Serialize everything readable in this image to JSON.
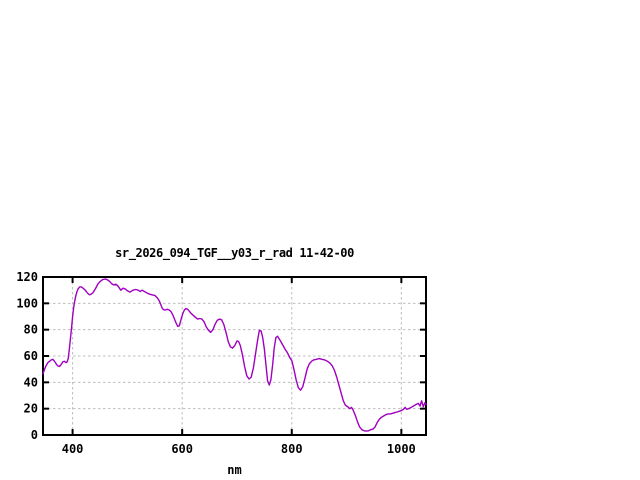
{
  "chart_data": {
    "type": "line",
    "title": "sr_2026_094_TGF__y03_r_rad 11-42-00",
    "xlabel": "nm",
    "ylabel": "",
    "xlim": [
      346,
      1045
    ],
    "ylim": [
      0,
      120
    ],
    "xticks": [
      400,
      600,
      800,
      1000
    ],
    "yticks": [
      0,
      20,
      40,
      60,
      80,
      100,
      120
    ],
    "grid": true,
    "legend": "none",
    "colors": {
      "line": "#a000c0",
      "grid": "#bdbdbd",
      "frame": "#000000",
      "background": "#ffffff",
      "text": "#000000"
    },
    "series": [
      {
        "points": [
          [
            346,
            46.5
          ],
          [
            349,
            50
          ],
          [
            352,
            53
          ],
          [
            355,
            55
          ],
          [
            358,
            56
          ],
          [
            361,
            57
          ],
          [
            364,
            57.5
          ],
          [
            367,
            56
          ],
          [
            370,
            54
          ],
          [
            373,
            52.5
          ],
          [
            376,
            52
          ],
          [
            379,
            53.5
          ],
          [
            382,
            55.5
          ],
          [
            385,
            56
          ],
          [
            388,
            55
          ],
          [
            390,
            55.5
          ],
          [
            392,
            58
          ],
          [
            394,
            65
          ],
          [
            396,
            73
          ],
          [
            398,
            81
          ],
          [
            400,
            90
          ],
          [
            402,
            97
          ],
          [
            404,
            102
          ],
          [
            406,
            106
          ],
          [
            408,
            109
          ],
          [
            410,
            111
          ],
          [
            413,
            112.5
          ],
          [
            416,
            112.5
          ],
          [
            419,
            111.5
          ],
          [
            422,
            110.5
          ],
          [
            425,
            109
          ],
          [
            428,
            107.5
          ],
          [
            431,
            106.5
          ],
          [
            434,
            107
          ],
          [
            437,
            108
          ],
          [
            440,
            110
          ],
          [
            443,
            112
          ],
          [
            446,
            114.5
          ],
          [
            450,
            116.5
          ],
          [
            455,
            118
          ],
          [
            460,
            118.5
          ],
          [
            465,
            117.5
          ],
          [
            468,
            116.5
          ],
          [
            471,
            115
          ],
          [
            475,
            114
          ],
          [
            479,
            114.5
          ],
          [
            483,
            113
          ],
          [
            488,
            110
          ],
          [
            492,
            111.5
          ],
          [
            496,
            111
          ],
          [
            500,
            109.5
          ],
          [
            505,
            108.5
          ],
          [
            510,
            110
          ],
          [
            515,
            110.5
          ],
          [
            520,
            110
          ],
          [
            523,
            109
          ],
          [
            527,
            110
          ],
          [
            531,
            109
          ],
          [
            535,
            108
          ],
          [
            540,
            107
          ],
          [
            545,
            106.5
          ],
          [
            550,
            106
          ],
          [
            555,
            104
          ],
          [
            558,
            102
          ],
          [
            561,
            99
          ],
          [
            564,
            96
          ],
          [
            567,
            95
          ],
          [
            570,
            95
          ],
          [
            573,
            95.5
          ],
          [
            576,
            95
          ],
          [
            580,
            93.5
          ],
          [
            583,
            91
          ],
          [
            586,
            88
          ],
          [
            589,
            85
          ],
          [
            592,
            82.5
          ],
          [
            595,
            83
          ],
          [
            598,
            88
          ],
          [
            601,
            92
          ],
          [
            604,
            95
          ],
          [
            607,
            96
          ],
          [
            610,
            95.5
          ],
          [
            613,
            94
          ],
          [
            616,
            92.5
          ],
          [
            620,
            91
          ],
          [
            624,
            89.5
          ],
          [
            628,
            88
          ],
          [
            632,
            88.5
          ],
          [
            636,
            88
          ],
          [
            640,
            86
          ],
          [
            644,
            82
          ],
          [
            648,
            79.5
          ],
          [
            652,
            78
          ],
          [
            656,
            80
          ],
          [
            660,
            84
          ],
          [
            664,
            87
          ],
          [
            668,
            88
          ],
          [
            672,
            87.5
          ],
          [
            676,
            84
          ],
          [
            680,
            78
          ],
          [
            684,
            71
          ],
          [
            688,
            67
          ],
          [
            692,
            66
          ],
          [
            696,
            68
          ],
          [
            700,
            71.5
          ],
          [
            703,
            71
          ],
          [
            706,
            68
          ],
          [
            710,
            61
          ],
          [
            714,
            52
          ],
          [
            718,
            45
          ],
          [
            722,
            42.5
          ],
          [
            726,
            44
          ],
          [
            730,
            51
          ],
          [
            734,
            62
          ],
          [
            738,
            73
          ],
          [
            741,
            79.5
          ],
          [
            744,
            79
          ],
          [
            747,
            74
          ],
          [
            750,
            65
          ],
          [
            753,
            53
          ],
          [
            756,
            41
          ],
          [
            759,
            38
          ],
          [
            762,
            42
          ],
          [
            765,
            53
          ],
          [
            768,
            66
          ],
          [
            771,
            74
          ],
          [
            774,
            75
          ],
          [
            777,
            73
          ],
          [
            780,
            71
          ],
          [
            784,
            68
          ],
          [
            788,
            65
          ],
          [
            792,
            62.5
          ],
          [
            796,
            59
          ],
          [
            800,
            56.5
          ],
          [
            804,
            50
          ],
          [
            808,
            42
          ],
          [
            812,
            36
          ],
          [
            816,
            34
          ],
          [
            820,
            36.5
          ],
          [
            824,
            43
          ],
          [
            828,
            50
          ],
          [
            832,
            54
          ],
          [
            836,
            56
          ],
          [
            840,
            57
          ],
          [
            845,
            57.5
          ],
          [
            850,
            58
          ],
          [
            855,
            57.5
          ],
          [
            860,
            57
          ],
          [
            865,
            56
          ],
          [
            870,
            54.5
          ],
          [
            874,
            52.5
          ],
          [
            878,
            49
          ],
          [
            882,
            44
          ],
          [
            886,
            38
          ],
          [
            890,
            32
          ],
          [
            894,
            26
          ],
          [
            898,
            22.5
          ],
          [
            902,
            21.5
          ],
          [
            906,
            20
          ],
          [
            909,
            21
          ],
          [
            912,
            19
          ],
          [
            916,
            15
          ],
          [
            920,
            10
          ],
          [
            924,
            6
          ],
          [
            928,
            4
          ],
          [
            932,
            3.2
          ],
          [
            936,
            3
          ],
          [
            940,
            3.2
          ],
          [
            944,
            4
          ],
          [
            948,
            4.5
          ],
          [
            952,
            6
          ],
          [
            956,
            9.5
          ],
          [
            960,
            12
          ],
          [
            964,
            13.5
          ],
          [
            968,
            14.5
          ],
          [
            972,
            15.5
          ],
          [
            976,
            16
          ],
          [
            980,
            16
          ],
          [
            984,
            16.5
          ],
          [
            988,
            17
          ],
          [
            992,
            17.5
          ],
          [
            996,
            18
          ],
          [
            1000,
            18.5
          ],
          [
            1004,
            19.5
          ],
          [
            1007,
            21
          ],
          [
            1010,
            19.5
          ],
          [
            1013,
            20
          ],
          [
            1016,
            20.5
          ],
          [
            1020,
            21.5
          ],
          [
            1024,
            22.5
          ],
          [
            1028,
            23.5
          ],
          [
            1031,
            24
          ],
          [
            1034,
            22
          ],
          [
            1037,
            26
          ],
          [
            1040,
            21.5
          ],
          [
            1043,
            24.5
          ],
          [
            1045,
            23
          ]
        ]
      }
    ]
  }
}
